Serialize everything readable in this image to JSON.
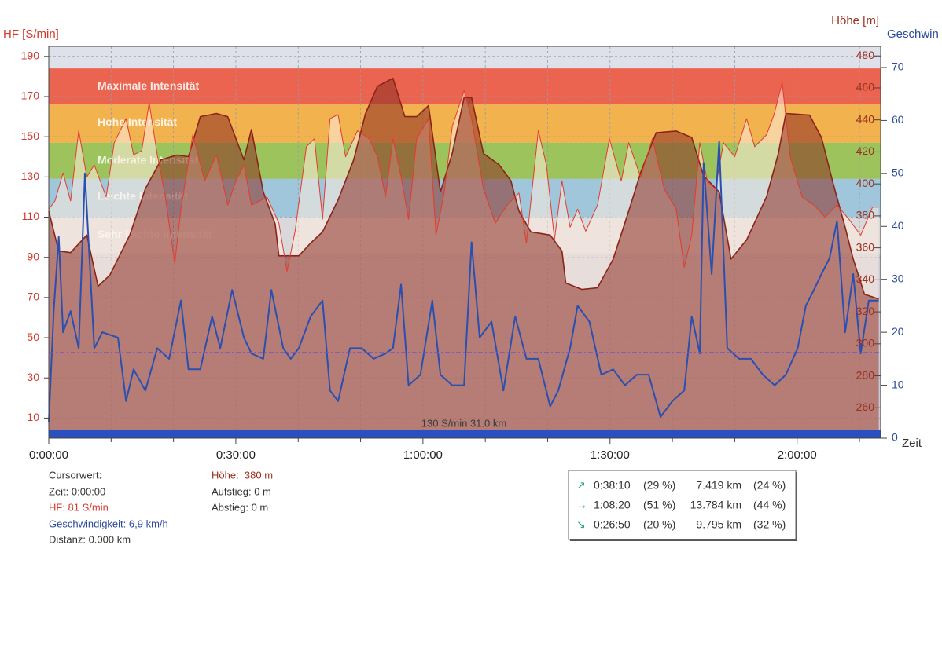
{
  "chart_data": {
    "type": "line",
    "ylabel": "HF [S/min]",
    "y2label": "Höhe [m]",
    "y3label": "Geschwin",
    "xlabel": "Zeit",
    "xlim": [
      0,
      133.4
    ],
    "xticks": [
      {
        "value": 0,
        "label": "0:00:00"
      },
      {
        "value": 30,
        "label": "0:30:00"
      },
      {
        "value": 60,
        "label": "1:00:00"
      },
      {
        "value": 90,
        "label": "1:30:00"
      },
      {
        "value": 120,
        "label": "2:00:00"
      }
    ],
    "xminor": [
      10,
      20,
      40,
      50,
      70,
      80,
      100,
      110,
      130
    ],
    "ylim": [
      0,
      195
    ],
    "yticks": [
      10,
      30,
      50,
      70,
      90,
      110,
      130,
      150,
      170,
      190
    ],
    "y2lim": [
      241,
      486
    ],
    "y2ticks": [
      260,
      280,
      300,
      320,
      340,
      360,
      380,
      400,
      420,
      440,
      460,
      480
    ],
    "y3lim": [
      0,
      74
    ],
    "y3ticks": [
      0,
      10,
      20,
      30,
      40,
      50,
      60,
      70
    ],
    "grid": true,
    "zones": [
      {
        "name": "Maximale Intensität",
        "from": 166,
        "to": 184,
        "color": "#ea6450"
      },
      {
        "name": "Hohe Intensität",
        "from": 147,
        "to": 166,
        "color": "#f2b24e"
      },
      {
        "name": "Moderate Intensität",
        "from": 129,
        "to": 147,
        "color": "#9dc45c"
      },
      {
        "name": "Leichte Intensität",
        "from": 110,
        "to": 129,
        "color": "#9fc6da"
      },
      {
        "name": "Sehr leichte Intensität",
        "from": 92,
        "to": 110,
        "color": "#d9d9dc"
      }
    ],
    "series": [
      {
        "axis": "y",
        "kind": "area",
        "color": "#e53a2c",
        "fill": "rgba(255,236,222,0.55)",
        "x": [
          0,
          1,
          2.3,
          3.5,
          4.8,
          6.1,
          7.3,
          9.2,
          10.5,
          12.4,
          13.6,
          14.9,
          16.1,
          17.4,
          18.7,
          20.2,
          21.2,
          23.1,
          25,
          26.9,
          28.7,
          30,
          31.3,
          32.5,
          35,
          36.9,
          38.2,
          39.5,
          41.3,
          42.6,
          43.9,
          45.1,
          46.4,
          47.6,
          49.5,
          51.4,
          52.7,
          54,
          55.2,
          56.5,
          57.7,
          59,
          60.9,
          62.1,
          63.4,
          64.7,
          66.6,
          67.8,
          69.7,
          71.6,
          73.5,
          75.4,
          76.6,
          78.5,
          79.8,
          81.1,
          82.3,
          83.6,
          84.8,
          86.1,
          88,
          89.9,
          91.8,
          93,
          94.9,
          96.8,
          98.7,
          100.6,
          101.9,
          103.1,
          104.4,
          105.6,
          106.9,
          108.2,
          110,
          111.9,
          113.2,
          115.1,
          116.3,
          117.6,
          118.9,
          120.8,
          122.7,
          124.5,
          126.4,
          128.3,
          130.2,
          132.1,
          133.1
        ],
        "values": [
          114,
          118,
          132,
          118,
          153,
          130,
          136,
          120,
          147,
          159,
          141,
          143,
          167,
          141,
          120,
          87,
          114,
          151,
          128,
          141,
          116,
          128,
          136,
          116,
          120,
          107,
          83,
          103,
          145,
          149,
          109,
          159,
          161,
          140,
          153,
          149,
          140,
          120,
          149,
          130,
          109,
          149,
          159,
          101,
          122,
          155,
          173,
          159,
          124,
          107,
          116,
          122,
          97,
          153,
          136,
          99,
          128,
          105,
          114,
          103,
          116,
          149,
          128,
          147,
          130,
          149,
          124,
          114,
          85,
          101,
          147,
          128,
          124,
          147,
          140,
          159,
          145,
          151,
          161,
          177,
          140,
          120,
          116,
          110,
          116,
          109,
          101,
          115,
          115
        ]
      },
      {
        "axis": "y2",
        "kind": "area",
        "color": "#8a2418",
        "fill": "rgba(140,45,35,0.55)",
        "x": [
          0,
          1.6,
          3.5,
          6.1,
          7.9,
          9.8,
          13,
          15.5,
          18,
          20.5,
          22.4,
          24.3,
          26.9,
          28.7,
          31.3,
          32.5,
          34.4,
          36.3,
          36.9,
          40.1,
          42,
          43.9,
          46.4,
          48.9,
          50.8,
          52.7,
          55.2,
          57.1,
          59,
          60.9,
          62.8,
          64.7,
          66.6,
          67.8,
          69.7,
          72.2,
          74.1,
          75.4,
          77.3,
          80.4,
          82.3,
          82.9,
          85.5,
          88,
          90.5,
          93,
          94.9,
          97.4,
          100.6,
          103.1,
          105,
          107.5,
          109.4,
          111.9,
          115.1,
          117,
          118.2,
          122,
          123.9,
          125.8,
          127.7,
          129,
          130.8,
          133.1
        ],
        "values": [
          383,
          358,
          357,
          368,
          336,
          343,
          368,
          397,
          415,
          418,
          417,
          442,
          444,
          442,
          415,
          434,
          395,
          375,
          355,
          355,
          363,
          370,
          390,
          415,
          444,
          461,
          466,
          442,
          442,
          449,
          395,
          419,
          454,
          454,
          419,
          412,
          402,
          383,
          370,
          368,
          358,
          338,
          334,
          335,
          353,
          383,
          407,
          432,
          433,
          429,
          405,
          395,
          353,
          365,
          392,
          419,
          444,
          443,
          429,
          400,
          373,
          353,
          331,
          328
        ]
      },
      {
        "axis": "y3",
        "kind": "line",
        "color": "#2a4fb0",
        "x": [
          0,
          0.8,
          1.6,
          2.3,
          3.5,
          4.8,
          5.8,
          7.3,
          8.6,
          11.1,
          12.4,
          13.6,
          15.5,
          17.4,
          19.3,
          21.2,
          22.4,
          24.3,
          26.2,
          27.5,
          29.4,
          31.3,
          32.5,
          34.4,
          35.7,
          37.6,
          38.8,
          40.1,
          42,
          43.9,
          45.1,
          46.4,
          48.3,
          50.2,
          52.1,
          54,
          55.2,
          56.5,
          57.7,
          59.6,
          61.5,
          62.8,
          64.7,
          66.6,
          67.8,
          69.1,
          71,
          72.9,
          74.8,
          76.6,
          78.5,
          80.4,
          81.7,
          83.6,
          84.8,
          86.7,
          88.6,
          90.5,
          92.4,
          94.3,
          96.2,
          98.1,
          100,
          101.9,
          103.1,
          104.4,
          105,
          106.3,
          107.5,
          108.8,
          110.7,
          112.6,
          114.5,
          116.4,
          118.2,
          120.1,
          121.4,
          122.7,
          123.9,
          125.2,
          126.4,
          127.7,
          129,
          130.2,
          131.5,
          133.1
        ],
        "values": [
          3,
          24,
          38,
          20,
          24,
          17,
          50,
          17,
          20,
          19,
          7,
          13,
          9,
          17,
          15,
          26,
          13,
          13,
          23,
          17,
          28,
          19,
          16,
          15,
          28,
          17,
          15,
          17,
          23,
          26,
          9,
          7,
          17,
          17,
          15,
          16,
          17,
          29,
          10,
          12,
          26,
          12,
          10,
          10,
          37,
          19,
          22,
          9,
          23,
          15,
          15,
          6,
          9,
          17,
          25,
          22,
          12,
          13,
          10,
          12,
          12,
          4,
          7,
          9,
          23,
          16,
          52,
          31,
          56,
          17,
          15,
          15,
          12,
          10,
          12,
          17,
          25,
          28,
          31,
          34,
          41,
          20,
          31,
          16,
          26,
          26
        ]
      }
    ],
    "average_line": {
      "value": 16.2,
      "axis": "y3",
      "color": "#7b52c8"
    },
    "annotation": "130 S/min 31.0 km"
  },
  "cursor_panel": {
    "left": [
      "Cursorwert:",
      "Zeit: 0:00:00",
      "HF: 81 S/min",
      "Geschwindigkeit: 6,9 km/h",
      "Distanz: 0.000 km"
    ],
    "right": [
      "Höhe:  380 m",
      "Aufstieg: 0 m",
      "Abstieg: 0 m"
    ]
  },
  "summary_table": {
    "rows": [
      [
        "↗",
        "0:38:10",
        "(29 %)",
        "7.419 km",
        "(24 %)"
      ],
      [
        "→",
        "1:08:20",
        "(51 %)",
        "13.784 km",
        "(44 %)"
      ],
      [
        "↘",
        "0:26:50",
        "(20 %)",
        "9.795 km",
        "(32 %)"
      ]
    ]
  }
}
